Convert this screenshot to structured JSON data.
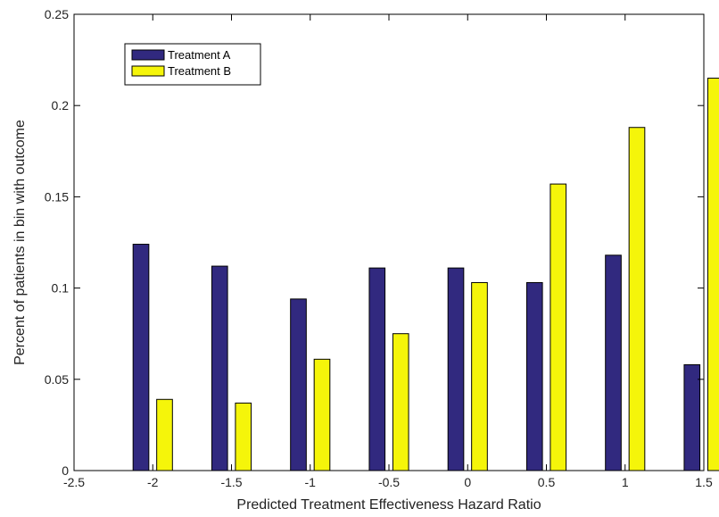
{
  "chart_data": {
    "type": "bar",
    "xlabel": "Predicted Treatment Effectiveness Hazard Ratio",
    "ylabel": "Percent of patients in bin with outcome",
    "xlim": [
      -2.5,
      1.5
    ],
    "ylim": [
      0,
      0.25
    ],
    "x_ticks": [
      -2.5,
      -2,
      -1.5,
      -1,
      -0.5,
      0,
      0.5,
      1,
      1.5
    ],
    "x_tick_labels": [
      "-2.5",
      "-2",
      "-1.5",
      "-1",
      "-0.5",
      "0",
      "0.5",
      "1",
      "1.5"
    ],
    "y_ticks": [
      0,
      0.05,
      0.1,
      0.15,
      0.2,
      0.25
    ],
    "y_tick_labels": [
      "0",
      "0.05",
      "0.1",
      "0.15",
      "0.2",
      "0.25"
    ],
    "categories": [
      -2,
      -1.5,
      -1,
      -0.5,
      0,
      0.5,
      1,
      1.5
    ],
    "series": [
      {
        "name": "Treatment A",
        "color": "#31297f",
        "values": [
          0.124,
          0.112,
          0.094,
          0.111,
          0.111,
          0.103,
          0.118,
          0.058
        ]
      },
      {
        "name": "Treatment B",
        "color": "#f5f50a",
        "values": [
          0.039,
          0.037,
          0.061,
          0.075,
          0.103,
          0.157,
          0.188,
          0.215
        ]
      }
    ],
    "grid": false,
    "legend_position": "top-left"
  }
}
